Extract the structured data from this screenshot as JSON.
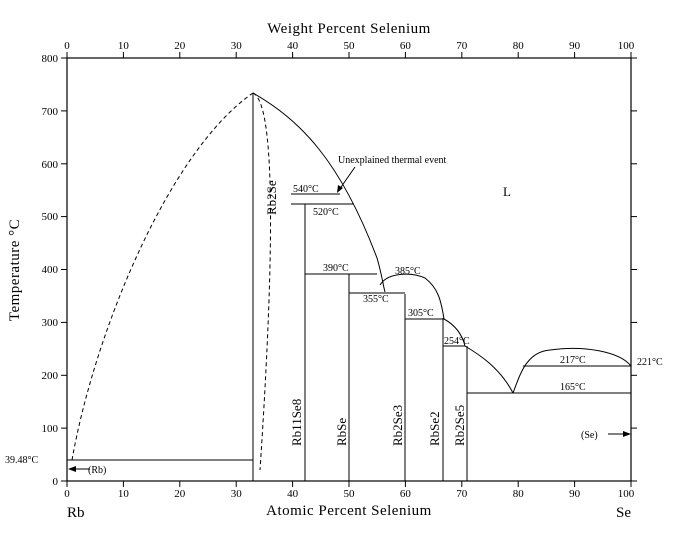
{
  "diagram": {
    "top_axis_title": "Weight Percent Selenium",
    "bottom_axis_title": "Atomic Percent Selenium",
    "left_axis_title": "Temperature °C",
    "left_element": "Rb",
    "right_element": "Se",
    "top_ticks": [
      "0",
      "10",
      "20",
      "30",
      "40",
      "50",
      "60",
      "70",
      "80",
      "90",
      "100"
    ],
    "bottom_ticks": [
      "0",
      "10",
      "20",
      "30",
      "40",
      "50",
      "60",
      "70",
      "80",
      "90",
      "100"
    ],
    "left_ticks": [
      "0",
      "100",
      "200",
      "300",
      "400",
      "500",
      "600",
      "700",
      "800"
    ],
    "liquid_label": "L",
    "annotation": "Unexplained thermal event",
    "rb_point": "39.48°C",
    "rb_phase": "(Rb)",
    "se_phase": "(Se)",
    "temps": {
      "t540": "540°C",
      "t520": "520°C",
      "t390": "390°C",
      "t385": "385°C",
      "t355": "355°C",
      "t305": "305°C",
      "t254": "254°C",
      "t217": "217°C",
      "t221": "221°C",
      "t165": "165°C"
    },
    "compounds": {
      "rb2se": "Rb2Se",
      "rb11se8": "Rb11Se8",
      "rbse": "RbSe",
      "rb2se3": "Rb2Se3",
      "rbse2": "RbSe2",
      "rb2se5": "Rb2Se5"
    }
  }
}
